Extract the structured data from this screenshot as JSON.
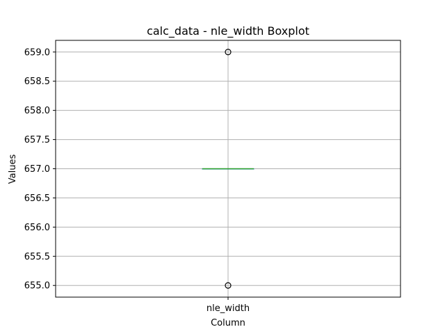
{
  "chart_data": {
    "type": "box",
    "title": "calc_data - nle_width Boxplot",
    "xlabel": "Column",
    "ylabel": "Values",
    "categories": [
      "nle_width"
    ],
    "ylim": [
      654.8,
      659.2
    ],
    "yticks": [
      655.0,
      655.5,
      656.0,
      656.5,
      657.0,
      657.5,
      658.0,
      658.5,
      659.0
    ],
    "ytick_labels": [
      "655.0",
      "655.5",
      "656.0",
      "656.5",
      "657.0",
      "657.5",
      "658.0",
      "658.5",
      "659.0"
    ],
    "grid": true,
    "boxes": [
      {
        "name": "nle_width",
        "q1": 657.0,
        "median": 657.0,
        "q3": 657.0,
        "whisker_low": 657.0,
        "whisker_high": 657.0,
        "outliers": [
          655.0,
          659.0
        ]
      }
    ],
    "colors": {
      "median": "#2ca02c",
      "box": "#1f77b4",
      "grid": "#b0b0b0",
      "axes": "#000000"
    }
  }
}
